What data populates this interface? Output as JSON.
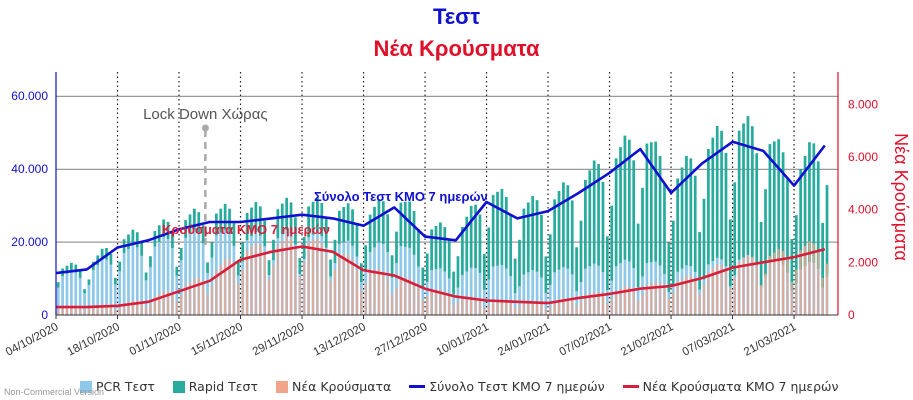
{
  "title": "Τεστ",
  "subtitle": "Νέα Κρούσματα",
  "credit": "Non-Commercial Version",
  "colors": {
    "title": "#1010d0",
    "subtitle": "#e0102a",
    "pcr": "#8ec8ea",
    "rapid": "#27ab9c",
    "cases": "#f0a48a",
    "tests_ma": "#1010d0",
    "cases_ma": "#d81e3a",
    "left_axis": "#1010d0",
    "right_axis": "#e0102a"
  },
  "legend": [
    {
      "label": "PCR Τεστ",
      "kind": "box",
      "color_key": "pcr"
    },
    {
      "label": "Rapid Τεστ",
      "kind": "box",
      "color_key": "rapid"
    },
    {
      "label": "Νέα Κρούσματα",
      "kind": "box",
      "color_key": "cases"
    },
    {
      "label": "Σύνολο Τεστ ΚΜΟ 7 ημερών",
      "kind": "line",
      "color_key": "tests_ma"
    },
    {
      "label": "Νέα Κρούσματα ΚΜΟ 7 ημερών",
      "kind": "line",
      "color_key": "cases_ma"
    }
  ],
  "annotations": {
    "lockdown": "Lock Down Χώρας",
    "tests_ma": "Σύνολο Τεστ ΚΜΟ 7 ημερών",
    "cases_ma": "Κρούσματα ΚΜΟ 7 ημερών",
    "right_axis_title": "Νέα Κρούσματα"
  },
  "chart_data": {
    "type": "bar",
    "x_start": "2020-10-04",
    "x_tick_labels": [
      "04/10/2020",
      "18/10/2020",
      "01/11/2020",
      "15/11/2020",
      "29/11/2020",
      "13/12/2020",
      "27/12/2020",
      "10/01/2021",
      "24/01/2021",
      "07/02/2021",
      "21/02/2021",
      "07/03/2021",
      "21/03/2021"
    ],
    "lockdown_date": "2020-11-07",
    "y_left": {
      "min": 0,
      "max": 65000,
      "ticks": [
        0,
        20000,
        40000,
        60000
      ],
      "tick_labels": [
        "0",
        "20.000",
        "40.000",
        "60.000"
      ]
    },
    "y_right": {
      "min": 0,
      "max": 9000,
      "ticks": [
        0,
        2000,
        4000,
        6000,
        8000
      ],
      "tick_labels": [
        "0",
        "2.000",
        "4.000",
        "6.000",
        "8.000"
      ],
      "label": "Νέα Κρούσματα"
    },
    "grid": "horizontal-solid, vertical-dotted-at-ticks",
    "legend_position": "bottom",
    "series": [
      {
        "name": "Σύνολο Τεστ ΚΜΟ 7 ημερών",
        "axis": "left",
        "kind": "line",
        "step_days": 7,
        "values": [
          11500,
          12500,
          18500,
          20500,
          23500,
          25500,
          25500,
          26500,
          27500,
          26500,
          24500,
          29500,
          21500,
          20500,
          31000,
          26500,
          28500,
          33500,
          39000,
          45500,
          33500,
          41500,
          47500,
          45000,
          35500,
          46500
        ]
      },
      {
        "name": "Νέα Κρούσματα ΚΜΟ 7 ημερών",
        "axis": "right",
        "kind": "line",
        "step_days": 7,
        "values": [
          300,
          300,
          350,
          500,
          900,
          1300,
          2100,
          2400,
          2600,
          2400,
          1700,
          1500,
          1000,
          700,
          550,
          500,
          450,
          650,
          800,
          1000,
          1100,
          1400,
          1800,
          2000,
          2200,
          2500
        ]
      },
      {
        "name": "PCR Τεστ",
        "axis": "left",
        "kind": "bar",
        "step_days": 7,
        "values": [
          10000,
          11000,
          16000,
          17500,
          20000,
          21000,
          19500,
          20000,
          20500,
          19000,
          16000,
          19000,
          12000,
          10000,
          13000,
          10500,
          11000,
          12000,
          12500,
          14000,
          11000,
          13000,
          14500,
          14000,
          11500,
          14000
        ]
      },
      {
        "name": "Rapid Τεστ",
        "axis": "left",
        "kind": "bar",
        "step_days": 7,
        "values": [
          2000,
          2000,
          3500,
          4000,
          4500,
          5500,
          7000,
          7500,
          8000,
          8500,
          9500,
          11500,
          10500,
          11500,
          19000,
          17000,
          18500,
          22500,
          27500,
          32500,
          23500,
          29500,
          34000,
          32000,
          25000,
          33500
        ]
      },
      {
        "name": "Νέα Κρούσματα",
        "axis": "right",
        "kind": "bar",
        "step_days": 7,
        "values": [
          320,
          330,
          380,
          600,
          1000,
          1500,
          2300,
          2500,
          2700,
          2300,
          1600,
          1400,
          950,
          650,
          520,
          480,
          430,
          700,
          850,
          1050,
          1150,
          1500,
          1900,
          2100,
          2300,
          2600
        ]
      }
    ]
  }
}
